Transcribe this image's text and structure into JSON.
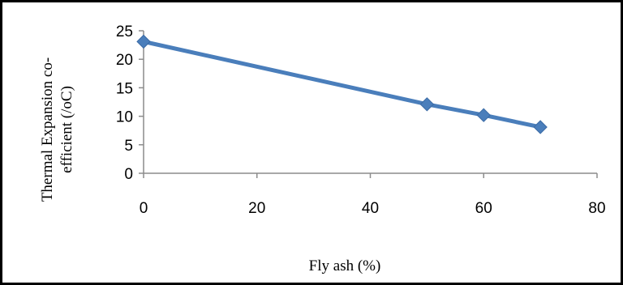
{
  "chart_data": {
    "type": "line",
    "title": "",
    "xlabel": "Fly ash (%)",
    "ylabel_lines": [
      "Thermal Expansion co-",
      "efficient (/oC)"
    ],
    "xlim": [
      0,
      80
    ],
    "ylim": [
      0,
      25
    ],
    "x_ticks": [
      0,
      20,
      40,
      60,
      80
    ],
    "y_ticks": [
      0,
      5,
      10,
      15,
      20,
      25
    ],
    "grid": false,
    "legend": "none",
    "series": [
      {
        "color": "#4a7ebb",
        "marker": "diamond",
        "x": [
          0,
          50,
          60,
          70
        ],
        "y": [
          23.1,
          12.1,
          10.2,
          8.1
        ]
      }
    ]
  }
}
